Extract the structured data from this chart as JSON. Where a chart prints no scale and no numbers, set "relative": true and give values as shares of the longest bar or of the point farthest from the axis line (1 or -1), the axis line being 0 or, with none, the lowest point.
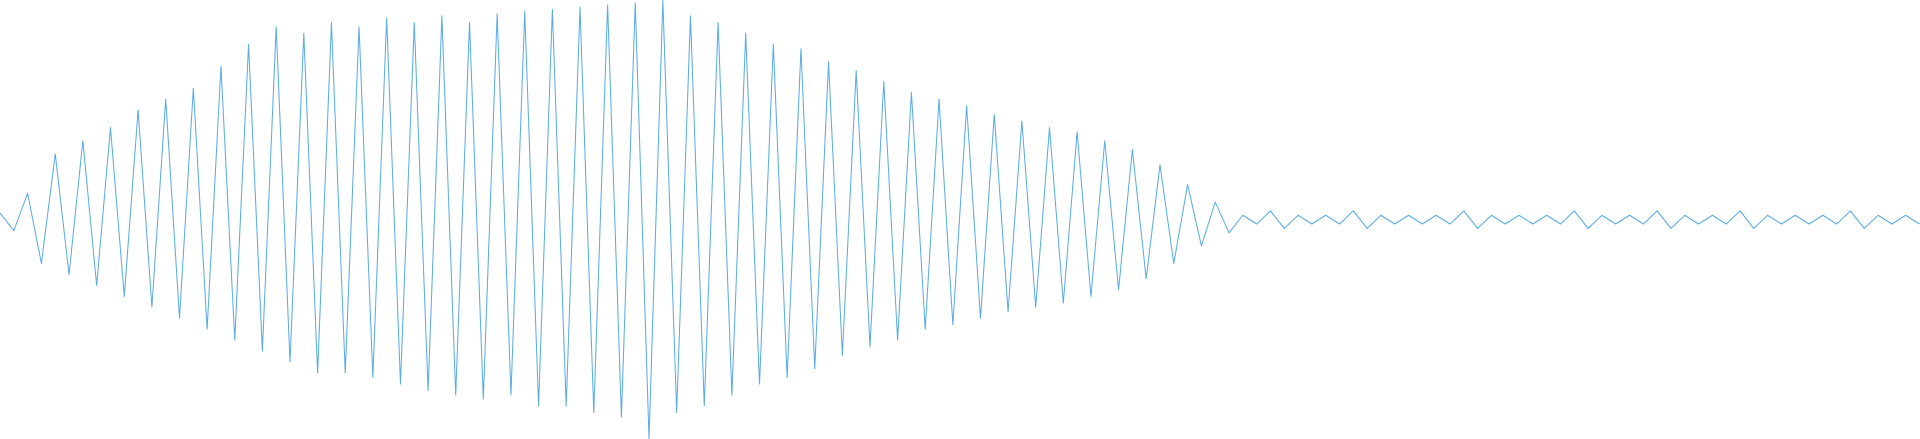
{
  "chart_data": {
    "type": "line",
    "relative": true,
    "color": "#5dade2",
    "marker": "none",
    "categories": [
      null,
      null,
      null,
      null,
      null,
      null,
      null,
      null,
      null,
      null,
      null,
      null,
      null,
      null,
      null,
      null,
      null,
      null,
      null,
      null,
      null,
      null,
      null,
      null,
      null,
      null,
      null,
      null,
      null,
      null,
      null,
      null,
      null,
      null,
      null,
      null,
      null,
      null,
      null,
      null,
      null,
      null,
      null,
      null,
      null,
      null,
      null,
      null,
      null,
      null,
      null,
      null,
      null,
      null,
      null,
      null,
      null,
      null,
      null,
      null,
      null,
      null,
      null,
      null,
      null,
      null,
      null,
      null,
      null,
      null,
      null,
      null,
      null,
      null,
      null,
      null,
      null,
      null,
      null,
      null,
      null,
      null,
      null,
      null,
      null,
      null,
      null,
      null,
      null,
      null,
      null,
      null,
      null,
      null,
      null,
      null,
      null,
      null,
      null,
      null,
      null,
      null,
      null,
      null,
      null,
      null,
      null,
      null,
      null,
      null,
      null,
      null,
      null,
      null,
      null,
      null,
      null,
      null,
      null,
      null,
      null,
      null,
      null,
      null,
      null,
      null,
      null,
      null,
      null,
      null,
      null,
      null,
      null,
      null,
      null,
      null,
      null,
      null,
      null,
      null,
      null,
      null,
      null,
      null,
      null,
      null,
      null,
      null,
      null,
      null,
      null,
      null,
      null,
      null,
      null,
      null,
      null,
      null,
      null,
      null,
      null,
      null,
      null,
      null
    ],
    "values": [
      0.515,
      0.475,
      0.56,
      0.4,
      0.65,
      0.375,
      0.68,
      0.35,
      0.71,
      0.325,
      0.75,
      0.3,
      0.775,
      0.275,
      0.8,
      0.25,
      0.85,
      0.225,
      0.9,
      0.2,
      0.94,
      0.175,
      0.925,
      0.15,
      0.95,
      0.15,
      0.94,
      0.14,
      0.96,
      0.125,
      0.95,
      0.11,
      0.965,
      0.1,
      0.95,
      0.09,
      0.97,
      0.1,
      0.975,
      0.075,
      0.98,
      0.075,
      0.985,
      0.06,
      0.99,
      0.05,
      0.995,
      0.0,
      1.0,
      0.06,
      0.965,
      0.075,
      0.95,
      0.1,
      0.925,
      0.125,
      0.9,
      0.14,
      0.89,
      0.16,
      0.86,
      0.19,
      0.84,
      0.21,
      0.815,
      0.225,
      0.79,
      0.25,
      0.775,
      0.26,
      0.76,
      0.275,
      0.74,
      0.29,
      0.725,
      0.3,
      0.71,
      0.31,
      0.7,
      0.325,
      0.68,
      0.34,
      0.66,
      0.365,
      0.625,
      0.4,
      0.58,
      0.44,
      0.54,
      0.47,
      0.51,
      0.49,
      0.52,
      0.48,
      0.51,
      0.49,
      0.51,
      0.49,
      0.52,
      0.48,
      0.51,
      0.49,
      0.51,
      0.49,
      0.51,
      0.49,
      0.52,
      0.48,
      0.51,
      0.49,
      0.51,
      0.49,
      0.51,
      0.49,
      0.52,
      0.48,
      0.51,
      0.49,
      0.51,
      0.49,
      0.52,
      0.48,
      0.51,
      0.49,
      0.51,
      0.49,
      0.52,
      0.48,
      0.51,
      0.49,
      0.51,
      0.49,
      0.51,
      0.49,
      0.52,
      0.48,
      0.51,
      0.49,
      0.51,
      0.49,
      null,
      null,
      null,
      null,
      null,
      null,
      null,
      null,
      null,
      null,
      null,
      null,
      null,
      null,
      null,
      null,
      null,
      null,
      null,
      null,
      null,
      null,
      null,
      null
    ]
  }
}
